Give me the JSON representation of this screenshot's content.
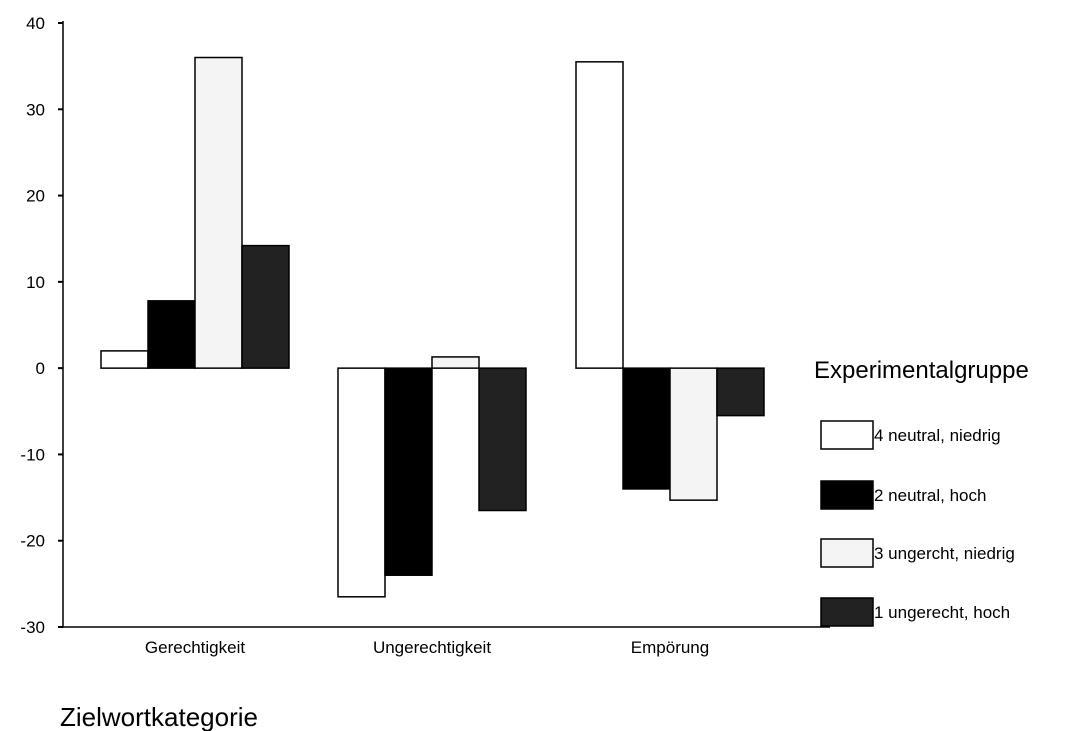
{
  "chart_data": {
    "type": "bar",
    "categories": [
      "Gerechtigkeit",
      "Ungerechtigkeit",
      "Empörung"
    ],
    "series": [
      {
        "name": "4 neutral, niedrig",
        "values": [
          2,
          -26.5,
          35.5
        ],
        "color": "#ffffff"
      },
      {
        "name": "2 neutral, hoch",
        "values": [
          7.8,
          -24,
          -14
        ],
        "color": "#000000"
      },
      {
        "name": "3 ungercht, niedrig",
        "values": [
          36,
          1.3,
          -15.3
        ],
        "color": "#f4f4f4"
      },
      {
        "name": "1 ungerecht, hoch",
        "values": [
          14.2,
          -16.5,
          -5.5
        ],
        "color": "#222222"
      }
    ],
    "title": "",
    "xlabel": "Zielwortkategorie",
    "ylabel": "",
    "ylim": [
      -30,
      40
    ],
    "yticks": [
      40,
      30,
      20,
      10,
      0,
      -10,
      -20,
      -30
    ],
    "legend": {
      "title": "Experimentalgruppe",
      "position": "right"
    },
    "grid": false
  }
}
